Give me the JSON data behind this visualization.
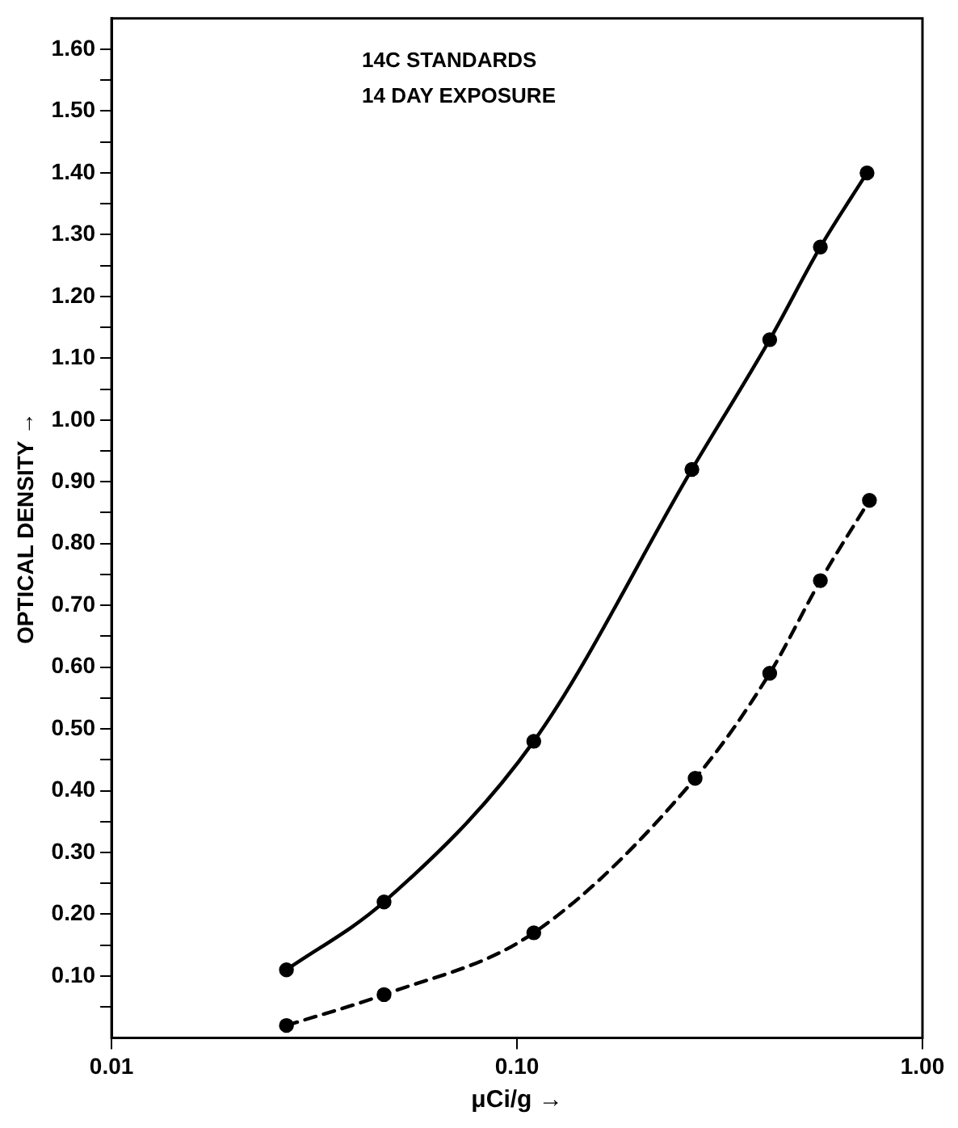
{
  "chart_data": {
    "type": "line",
    "xlabel": "μCi/g →",
    "ylabel": "OPTICAL DENSITY →",
    "annotations": [
      "14C STANDARDS",
      "14 DAY EXPOSURE"
    ],
    "log": "x",
    "grid": false,
    "legend": false,
    "marker": "circle",
    "xlim": [
      0.01,
      1
    ],
    "xticks": [
      {
        "value": 0.01,
        "label": "0.01"
      },
      {
        "value": 0.1,
        "label": "0.10"
      },
      {
        "value": 1,
        "label": "1.00"
      }
    ],
    "ylim": [
      0,
      1.65
    ],
    "yticks": [
      {
        "value": 0.05,
        "label": null
      },
      {
        "value": 0.1,
        "label": "0.10"
      },
      {
        "value": 0.15,
        "label": null
      },
      {
        "value": 0.2,
        "label": "0.20"
      },
      {
        "value": 0.25,
        "label": null
      },
      {
        "value": 0.3,
        "label": "0.30"
      },
      {
        "value": 0.35,
        "label": null
      },
      {
        "value": 0.4,
        "label": "0.40"
      },
      {
        "value": 0.45,
        "label": null
      },
      {
        "value": 0.5,
        "label": "0.50"
      },
      {
        "value": 0.55,
        "label": null
      },
      {
        "value": 0.6,
        "label": "0.60"
      },
      {
        "value": 0.65,
        "label": null
      },
      {
        "value": 0.7,
        "label": "0.70"
      },
      {
        "value": 0.75,
        "label": null
      },
      {
        "value": 0.8,
        "label": "0.80"
      },
      {
        "value": 0.85,
        "label": null
      },
      {
        "value": 0.9,
        "label": "0.90"
      },
      {
        "value": 0.95,
        "label": null
      },
      {
        "value": 1.0,
        "label": "1.00"
      },
      {
        "value": 1.05,
        "label": null
      },
      {
        "value": 1.1,
        "label": "1.10"
      },
      {
        "value": 1.15,
        "label": null
      },
      {
        "value": 1.2,
        "label": "1.20"
      },
      {
        "value": 1.25,
        "label": null
      },
      {
        "value": 1.3,
        "label": "1.30"
      },
      {
        "value": 1.35,
        "label": null
      },
      {
        "value": 1.4,
        "label": "1.40"
      },
      {
        "value": 1.45,
        "label": null
      },
      {
        "value": 1.5,
        "label": "1.50"
      },
      {
        "value": 1.55,
        "label": null
      },
      {
        "value": 1.6,
        "label": "1.60"
      }
    ],
    "series": [
      {
        "color": "#000000",
        "line_style": "solid",
        "x": [
          0.027,
          0.047,
          0.11,
          0.27,
          0.42,
          0.56,
          0.73
        ],
        "values": [
          0.11,
          0.22,
          0.48,
          0.92,
          1.13,
          1.28,
          1.4
        ]
      },
      {
        "color": "#000000",
        "line_style": "dashed",
        "x": [
          0.027,
          0.047,
          0.11,
          0.275,
          0.42,
          0.56,
          0.74
        ],
        "values": [
          0.02,
          0.07,
          0.17,
          0.42,
          0.59,
          0.74,
          0.87
        ]
      }
    ]
  }
}
